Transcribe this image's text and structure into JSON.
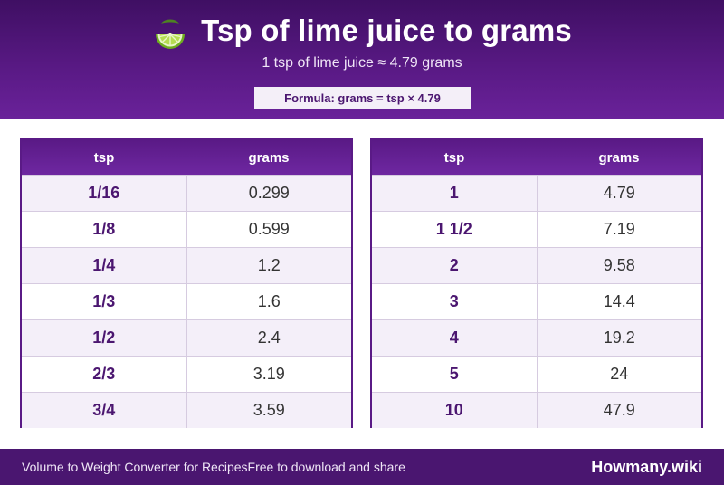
{
  "header": {
    "title": "Tsp of lime juice to grams",
    "subtitle": "1 tsp of lime juice ≈ 4.79 grams",
    "formula": "Formula: grams = tsp × 4.79",
    "icon": "lime-icon"
  },
  "tables": [
    {
      "col_tsp": "tsp",
      "col_grams": "grams",
      "rows": [
        {
          "tsp": "1/16",
          "grams": "0.299"
        },
        {
          "tsp": "1/8",
          "grams": "0.599"
        },
        {
          "tsp": "1/4",
          "grams": "1.2"
        },
        {
          "tsp": "1/3",
          "grams": "1.6"
        },
        {
          "tsp": "1/2",
          "grams": "2.4"
        },
        {
          "tsp": "2/3",
          "grams": "3.19"
        },
        {
          "tsp": "3/4",
          "grams": "3.59"
        }
      ]
    },
    {
      "col_tsp": "tsp",
      "col_grams": "grams",
      "rows": [
        {
          "tsp": "1",
          "grams": "4.79"
        },
        {
          "tsp": "1 1/2",
          "grams": "7.19"
        },
        {
          "tsp": "2",
          "grams": "9.58"
        },
        {
          "tsp": "3",
          "grams": "14.4"
        },
        {
          "tsp": "4",
          "grams": "19.2"
        },
        {
          "tsp": "5",
          "grams": "24"
        },
        {
          "tsp": "10",
          "grams": "47.9"
        }
      ]
    }
  ],
  "footer": {
    "left_text": "Volume to Weight Converter for Recipes",
    "middle_text": "Free to download and share",
    "brand": "Howmany.wiki"
  },
  "colors": {
    "header_bg": "#4a1670",
    "accent": "#5a1a86",
    "row_alt": "#f4eff9"
  }
}
